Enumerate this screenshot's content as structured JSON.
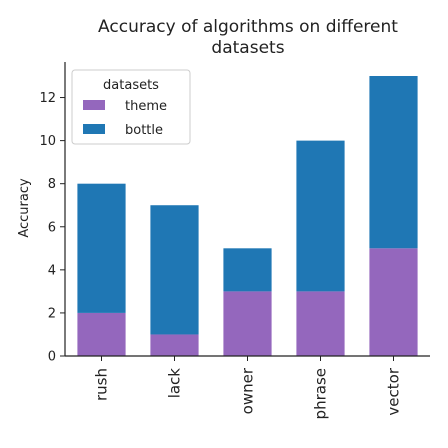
{
  "chart_data": {
    "type": "bar",
    "stacked": true,
    "title": "Accuracy of algorithms on different datasets",
    "title_lines": [
      "Accuracy of algorithms on different",
      "datasets"
    ],
    "xlabel": "",
    "ylabel": "Accuracy",
    "categories": [
      "rush",
      "lack",
      "owner",
      "phrase",
      "vector"
    ],
    "series": [
      {
        "name": "theme",
        "color": "#9467bd",
        "values": [
          2,
          1,
          3,
          3,
          5
        ]
      },
      {
        "name": "bottle",
        "color": "#1f77b4",
        "values": [
          6,
          6,
          2,
          7,
          8
        ]
      }
    ],
    "ylim": [
      0,
      13.65
    ],
    "yticks": [
      0,
      2,
      4,
      6,
      8,
      10,
      12
    ],
    "legend": {
      "title": "datasets",
      "position": "top-left"
    },
    "grid": false
  }
}
